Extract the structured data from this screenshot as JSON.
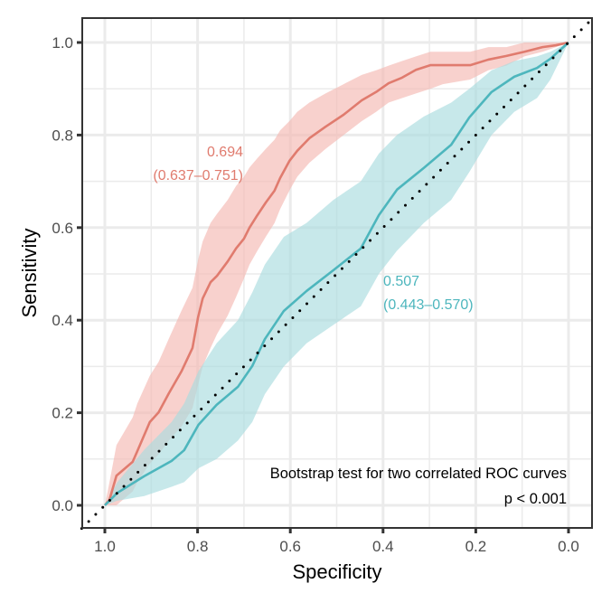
{
  "chart_data": {
    "type": "line",
    "title": "",
    "xlabel": "Specificity",
    "ylabel": "Sensitivity",
    "x_reversed": true,
    "xlim": [
      1.05,
      -0.05
    ],
    "ylim": [
      -0.05,
      1.05
    ],
    "x_ticks": [
      1.0,
      0.8,
      0.6,
      0.4,
      0.2,
      0.0
    ],
    "x_tick_labels": [
      "1.0",
      "0.8",
      "0.6",
      "0.4",
      "0.2",
      "0.0"
    ],
    "y_ticks": [
      0.0,
      0.2,
      0.4,
      0.6,
      0.8,
      1.0
    ],
    "y_tick_labels": [
      "0.0",
      "0.2",
      "0.4",
      "0.6",
      "0.8",
      "1.0"
    ],
    "grid": true,
    "legend": "none",
    "reference_line": {
      "style": "dotted",
      "color": "#000000",
      "from": [
        1.05,
        -0.05
      ],
      "to": [
        -0.05,
        1.05
      ]
    },
    "series": [
      {
        "name": "model-a",
        "color": "#e07b6e",
        "band_color": "#f4b9b2",
        "auc_label": "0.694",
        "ci_label": "(0.637–0.751)",
        "specificity": [
          1.0,
          0.99,
          0.975,
          0.94,
          0.93,
          0.903,
          0.884,
          0.862,
          0.835,
          0.811,
          0.799,
          0.789,
          0.772,
          0.758,
          0.735,
          0.717,
          0.7,
          0.688,
          0.671,
          0.653,
          0.634,
          0.622,
          0.602,
          0.585,
          0.559,
          0.524,
          0.485,
          0.446,
          0.415,
          0.388,
          0.359,
          0.329,
          0.298,
          0.271,
          0.212,
          0.173,
          0.134,
          0.095,
          0.056,
          0.027,
          0.0
        ],
        "sensitivity": [
          0.0,
          0.012,
          0.064,
          0.094,
          0.117,
          0.18,
          0.201,
          0.242,
          0.289,
          0.34,
          0.406,
          0.447,
          0.482,
          0.496,
          0.527,
          0.555,
          0.576,
          0.6,
          0.627,
          0.654,
          0.68,
          0.707,
          0.744,
          0.766,
          0.793,
          0.818,
          0.844,
          0.875,
          0.893,
          0.912,
          0.924,
          0.941,
          0.951,
          0.951,
          0.951,
          0.963,
          0.971,
          0.98,
          0.99,
          0.994,
          1.0
        ],
        "ci_lower": [
          0.0,
          0.0,
          0.0,
          0.03,
          0.05,
          0.09,
          0.11,
          0.14,
          0.17,
          0.21,
          0.26,
          0.3,
          0.34,
          0.37,
          0.41,
          0.45,
          0.49,
          0.52,
          0.55,
          0.58,
          0.61,
          0.64,
          0.68,
          0.71,
          0.74,
          0.77,
          0.8,
          0.83,
          0.85,
          0.87,
          0.88,
          0.89,
          0.9,
          0.91,
          0.92,
          0.94,
          0.95,
          0.97,
          0.98,
          0.99,
          1.0
        ],
        "ci_upper": [
          0.0,
          0.05,
          0.13,
          0.19,
          0.22,
          0.28,
          0.31,
          0.36,
          0.42,
          0.47,
          0.53,
          0.57,
          0.61,
          0.63,
          0.66,
          0.69,
          0.71,
          0.73,
          0.75,
          0.77,
          0.79,
          0.81,
          0.83,
          0.85,
          0.87,
          0.89,
          0.91,
          0.93,
          0.94,
          0.95,
          0.96,
          0.97,
          0.98,
          0.98,
          0.98,
          0.99,
          0.99,
          1.0,
          1.0,
          1.0,
          1.0
        ]
      },
      {
        "name": "model-b",
        "color": "#4db6bd",
        "band_color": "#a9dcdf",
        "auc_label": "0.507",
        "ci_label": "(0.443–0.570)",
        "specificity": [
          1.0,
          0.973,
          0.915,
          0.856,
          0.829,
          0.798,
          0.759,
          0.713,
          0.682,
          0.655,
          0.614,
          0.565,
          0.507,
          0.448,
          0.409,
          0.37,
          0.312,
          0.253,
          0.214,
          0.166,
          0.117,
          0.068,
          0.039,
          0.0
        ],
        "sensitivity": [
          0.0,
          0.027,
          0.063,
          0.096,
          0.119,
          0.174,
          0.217,
          0.256,
          0.301,
          0.359,
          0.42,
          0.463,
          0.508,
          0.555,
          0.627,
          0.682,
          0.729,
          0.779,
          0.838,
          0.893,
          0.926,
          0.945,
          0.965,
          1.0
        ],
        "ci_lower": [
          0.0,
          0.01,
          0.02,
          0.04,
          0.05,
          0.08,
          0.1,
          0.14,
          0.18,
          0.24,
          0.3,
          0.35,
          0.39,
          0.43,
          0.5,
          0.55,
          0.61,
          0.66,
          0.72,
          0.8,
          0.85,
          0.88,
          0.92,
          1.0
        ],
        "ci_upper": [
          0.0,
          0.05,
          0.12,
          0.18,
          0.22,
          0.29,
          0.35,
          0.4,
          0.46,
          0.52,
          0.58,
          0.61,
          0.66,
          0.7,
          0.76,
          0.8,
          0.84,
          0.87,
          0.9,
          0.94,
          0.96,
          0.97,
          0.98,
          1.0
        ]
      }
    ],
    "annotations": [
      {
        "text": "Bootstrap test for two correlated ROC curves",
        "anchor": "bottom-right"
      },
      {
        "text": "p < 0.001",
        "anchor": "bottom-right"
      }
    ]
  }
}
